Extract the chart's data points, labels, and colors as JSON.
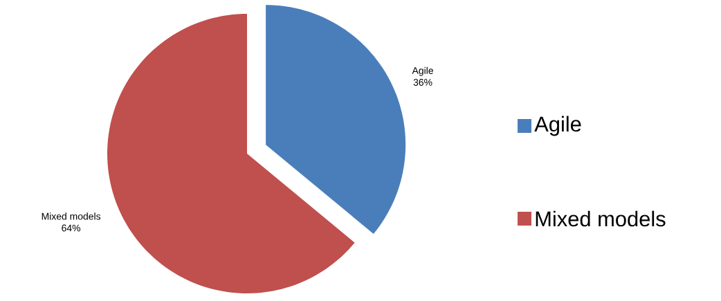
{
  "chart_data": {
    "type": "pie",
    "categories": [
      "Agile",
      "Mixed models"
    ],
    "values": [
      36,
      64
    ],
    "colors": [
      "#4a7ebb",
      "#c0504d"
    ],
    "value_labels": [
      "36%",
      "64%"
    ],
    "legend": "right"
  }
}
